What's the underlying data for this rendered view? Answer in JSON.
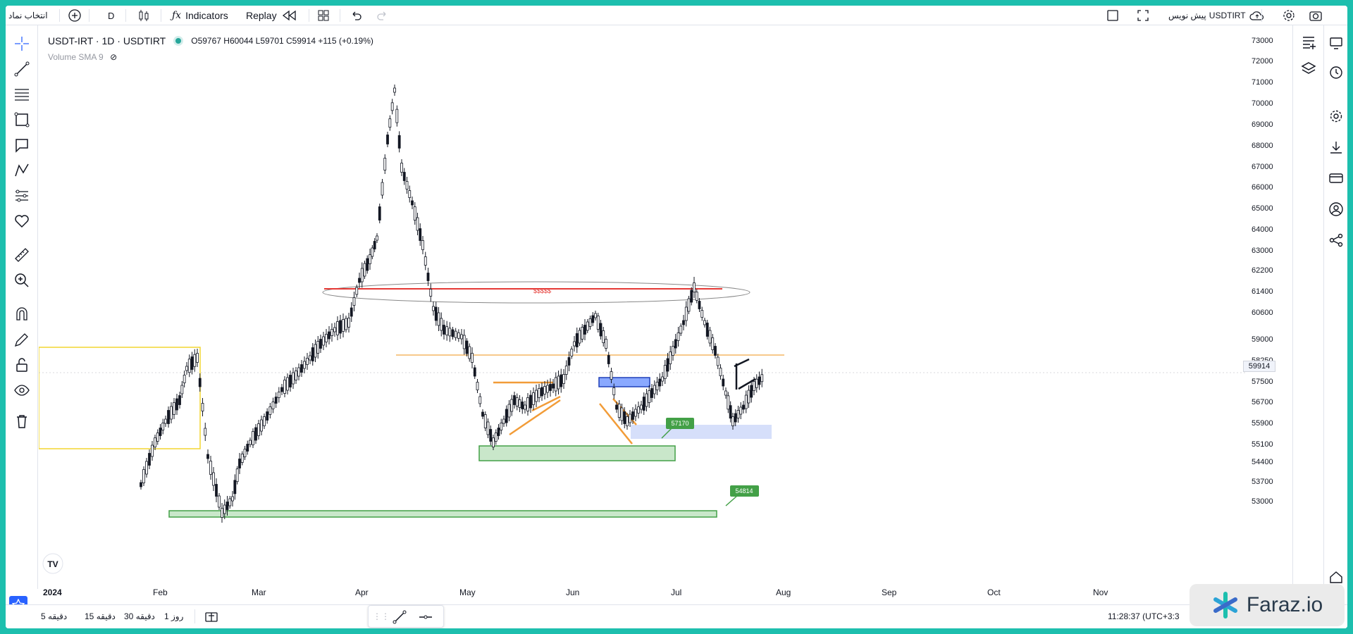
{
  "topbar": {
    "symbol_search": "انتخاب نماد",
    "interval": "D",
    "indicators": "Indicators",
    "replay": "Replay",
    "publish": "پیش نویس",
    "symbol": "USDTIRT"
  },
  "legend": {
    "title": "USDT-IRT · 1D · USDTIRT",
    "ohlc": "O59767 H60044 L59701 C59914 +115 (+0.19%)",
    "indicator": "Volume SMA 9"
  },
  "price_axis": {
    "labels": [
      "73000",
      "72000",
      "71000",
      "70000",
      "69000",
      "68000",
      "67000",
      "66000",
      "65000",
      "64000",
      "63000",
      "62200",
      "61400",
      "60600",
      "59000",
      "58250",
      "57500",
      "56700",
      "55900",
      "55100",
      "54400",
      "53700",
      "53000"
    ],
    "current": "59914"
  },
  "time_axis": {
    "labels": [
      "2024",
      "Feb",
      "Mar",
      "Apr",
      "May",
      "Jun",
      "Jul",
      "Aug",
      "Sep",
      "Oct",
      "Nov"
    ]
  },
  "annotations": {
    "label_57170": "57170",
    "label_54814": "54814",
    "dollar_text": "$$$$$"
  },
  "bottombar": {
    "tf1": "5 دقیقه",
    "tf2": "15 دقیقه",
    "tf3": "30 دقیقه",
    "tf4": "1 روز",
    "clock": "11:28:37 (UTC+3:3"
  },
  "watermark": {
    "brand": "Faraz.io"
  },
  "colors": {
    "accent": "#2962ff",
    "up": "#131722",
    "frame": "#1dbfae"
  }
}
